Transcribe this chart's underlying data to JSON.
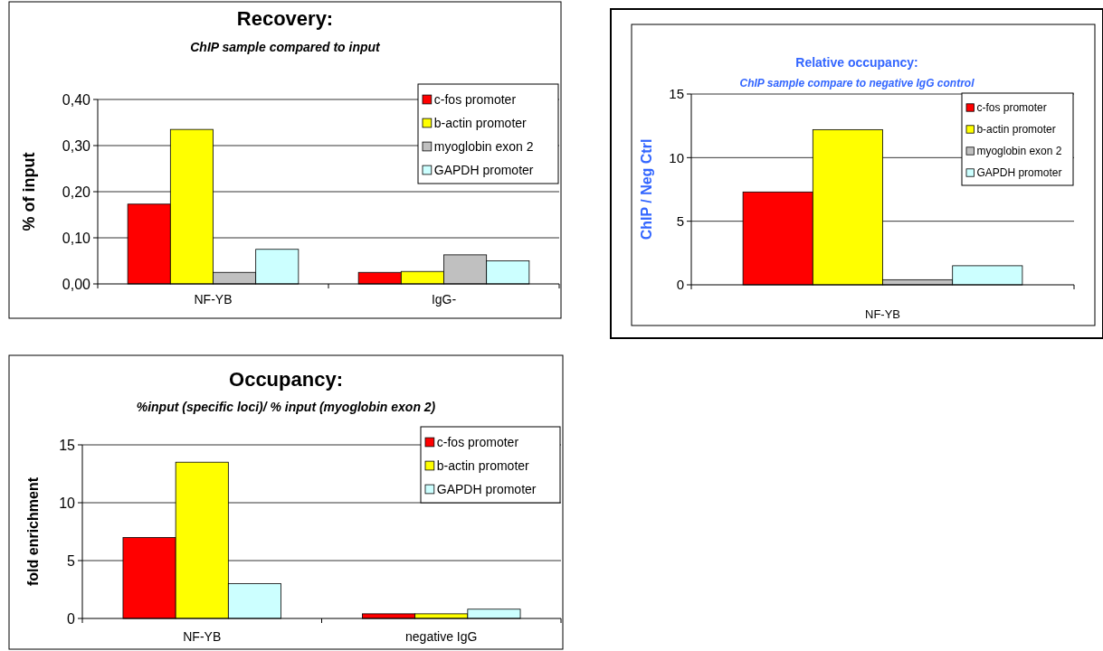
{
  "chart_data": [
    {
      "type": "bar",
      "title": "Recovery:",
      "subtitle": "ChIP sample compared to input",
      "ylabel": "% of input",
      "categories": [
        "NF-YB",
        "IgG-"
      ],
      "series": [
        {
          "name": "c-fos promoter",
          "color": "#ff0000",
          "values": [
            0.173,
            0.025
          ]
        },
        {
          "name": "b-actin promoter",
          "color": "#ffff00",
          "values": [
            0.335,
            0.027
          ]
        },
        {
          "name": "myoglobin exon 2",
          "color": "#c0c0c0",
          "values": [
            0.025,
            0.063
          ]
        },
        {
          "name": "GAPDH promoter",
          "color": "#ccffff",
          "values": [
            0.075,
            0.05
          ]
        }
      ],
      "ylim": [
        0,
        0.4
      ],
      "yticks": [
        {
          "value": 0,
          "label": "0,00"
        },
        {
          "value": 0.1,
          "label": "0,10"
        },
        {
          "value": 0.2,
          "label": "0,20"
        },
        {
          "value": 0.3,
          "label": "0,30"
        },
        {
          "value": 0.4,
          "label": "0,40"
        }
      ],
      "grid": "y",
      "legend": "top right"
    },
    {
      "type": "bar",
      "title": "Relative occupancy:",
      "subtitle": "ChIP sample compare to negative IgG control",
      "ylabel": "ChIP / Neg Ctrl",
      "categories": [
        "NF-YB"
      ],
      "series": [
        {
          "name": "c-fos promoter",
          "color": "#ff0000",
          "values": [
            7.3
          ]
        },
        {
          "name": "b-actin promoter",
          "color": "#ffff00",
          "values": [
            12.2
          ]
        },
        {
          "name": "myoglobin exon 2",
          "color": "#c0c0c0",
          "values": [
            0.4
          ]
        },
        {
          "name": "GAPDH promoter",
          "color": "#ccffff",
          "values": [
            1.5
          ]
        }
      ],
      "ylim": [
        0,
        15
      ],
      "yticks": [
        0,
        5,
        10,
        15
      ],
      "grid": "y",
      "legend": "top right"
    },
    {
      "type": "bar",
      "title": "Occupancy:",
      "subtitle": "%input (specific loci)/ % input (myoglobin exon 2)",
      "ylabel": "fold enrichment",
      "categories": [
        "NF-YB",
        "negative IgG"
      ],
      "series": [
        {
          "name": "c-fos promoter",
          "color": "#ff0000",
          "values": [
            7,
            0.4
          ]
        },
        {
          "name": "b-actin promoter",
          "color": "#ffff00",
          "values": [
            13.5,
            0.4
          ]
        },
        {
          "name": "GAPDH promoter",
          "color": "#ccffff",
          "values": [
            3,
            0.8
          ]
        }
      ],
      "ylim": [
        0,
        15
      ],
      "yticks": [
        0,
        5,
        10,
        15
      ],
      "grid": "y",
      "legend": "top right"
    }
  ]
}
